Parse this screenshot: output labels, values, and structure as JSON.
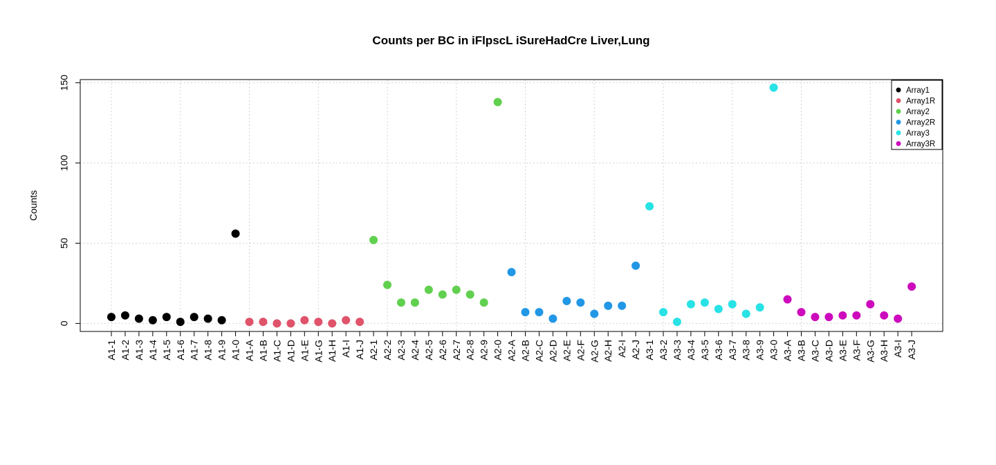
{
  "chart_data": {
    "type": "scatter",
    "title": "Counts per BC in iFlpscL iSureHadCre Liver,Lung",
    "xlabel": "",
    "ylabel": "Counts",
    "ylim": [
      -5,
      152
    ],
    "yticks": [
      0,
      50,
      100,
      150
    ],
    "grid": true,
    "legend_position": "top-right",
    "categories": [
      "A1-1",
      "A1-2",
      "A1-3",
      "A1-4",
      "A1-5",
      "A1-6",
      "A1-7",
      "A1-8",
      "A1-9",
      "A1-0",
      "A1-A",
      "A1-B",
      "A1-C",
      "A1-D",
      "A1-E",
      "A1-G",
      "A1-H",
      "A1-I",
      "A1-J",
      "A2-1",
      "A2-2",
      "A2-3",
      "A2-4",
      "A2-5",
      "A2-6",
      "A2-7",
      "A2-8",
      "A2-9",
      "A2-0",
      "A2-A",
      "A2-B",
      "A2-C",
      "A2-D",
      "A2-E",
      "A2-F",
      "A2-G",
      "A2-H",
      "A2-I",
      "A2-J",
      "A3-1",
      "A3-2",
      "A3-3",
      "A3-4",
      "A3-5",
      "A3-6",
      "A3-7",
      "A3-8",
      "A3-9",
      "A3-0",
      "A3-A",
      "A3-B",
      "A3-C",
      "A3-D",
      "A3-E",
      "A3-F",
      "A3-G",
      "A3-H",
      "A3-I",
      "A3-J"
    ],
    "series": [
      {
        "name": "Array1",
        "color": "#000000",
        "start": 0,
        "values": [
          4,
          5,
          3,
          2,
          4,
          1,
          4,
          3,
          2,
          56
        ]
      },
      {
        "name": "Array1R",
        "color": "#DF536B",
        "start": 10,
        "values": [
          1,
          1,
          0,
          0,
          2,
          1,
          0,
          2,
          1
        ]
      },
      {
        "name": "Array2",
        "color": "#61D04F",
        "start": 19,
        "values": [
          52,
          24,
          13,
          13,
          21,
          18,
          21,
          18,
          13,
          138
        ]
      },
      {
        "name": "Array2R",
        "color": "#2297E6",
        "start": 29,
        "values": [
          32,
          7,
          7,
          3,
          14,
          13,
          6,
          11,
          11,
          36
        ]
      },
      {
        "name": "Array3",
        "color": "#28E2E5",
        "start": 39,
        "values": [
          73,
          7,
          1,
          12,
          13,
          9,
          12,
          6,
          10,
          147
        ]
      },
      {
        "name": "Array3R",
        "color": "#CD0BBC",
        "start": 49,
        "values": [
          15,
          7,
          4,
          4,
          5,
          5,
          12,
          5,
          3,
          23
        ]
      }
    ]
  }
}
